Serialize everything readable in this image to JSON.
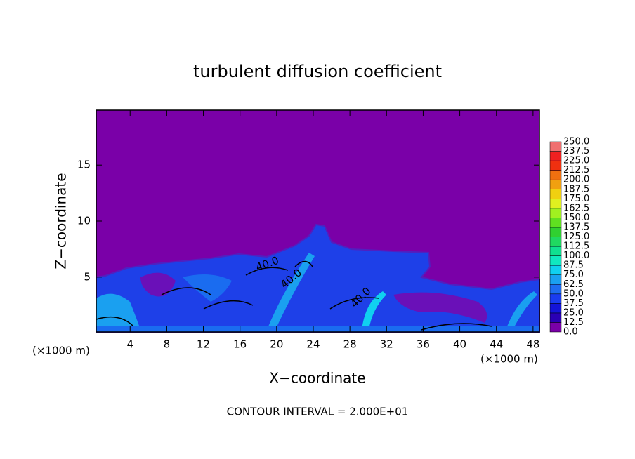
{
  "chart_data": {
    "type": "contour",
    "title": "turbulent diffusion coefficient",
    "xlabel": "X−coordinate",
    "ylabel": "Z−coordinate",
    "xunit": "(×1000 m)",
    "yunit": "(×1000 m)",
    "footnote": "CONTOUR INTERVAL = 2.000E+01",
    "xlim": [
      0.3,
      48.7
    ],
    "ylim": [
      0.1,
      19.9
    ],
    "xticks": [
      4,
      8,
      12,
      16,
      20,
      24,
      28,
      32,
      36,
      40,
      44,
      48
    ],
    "yticks": [
      5,
      10,
      15
    ],
    "contour_labels": [
      {
        "value": 40,
        "label": "40.0"
      },
      {
        "value": 40,
        "label": "40.0"
      },
      {
        "value": 40,
        "label": "40.0"
      }
    ],
    "colorbar": {
      "levels": [
        {
          "value": 0,
          "label": "0.0"
        },
        {
          "value": 12.5,
          "label": "12.5"
        },
        {
          "value": 25,
          "label": "25.0"
        },
        {
          "value": 37.5,
          "label": "37.5"
        },
        {
          "value": 50,
          "label": "50.0"
        },
        {
          "value": 62.5,
          "label": "62.5"
        },
        {
          "value": 75,
          "label": "75.0"
        },
        {
          "value": 87.5,
          "label": "87.5"
        },
        {
          "value": 100,
          "label": "100.0"
        },
        {
          "value": 112.5,
          "label": "112.5"
        },
        {
          "value": 125,
          "label": "125.0"
        },
        {
          "value": 137.5,
          "label": "137.5"
        },
        {
          "value": 150,
          "label": "150.0"
        },
        {
          "value": 162.5,
          "label": "162.5"
        },
        {
          "value": 175,
          "label": "175.0"
        },
        {
          "value": 187.5,
          "label": "187.5"
        },
        {
          "value": 200,
          "label": "200.0"
        },
        {
          "value": 212.5,
          "label": "212.5"
        },
        {
          "value": 225,
          "label": "225.0"
        },
        {
          "value": 237.5,
          "label": "237.5"
        },
        {
          "value": 250,
          "label": "250.0"
        }
      ],
      "colors": [
        "#7a00a8",
        "#2a00b4",
        "#1414d8",
        "#1a3cf0",
        "#1e6cf0",
        "#1aa0f0",
        "#10d0f0",
        "#10e8c0",
        "#10e090",
        "#20d860",
        "#30d030",
        "#60e020",
        "#a0f020",
        "#e0f020",
        "#f0d010",
        "#f0a010",
        "#f07010",
        "#f03010",
        "#f02020",
        "#f07070"
      ]
    }
  }
}
